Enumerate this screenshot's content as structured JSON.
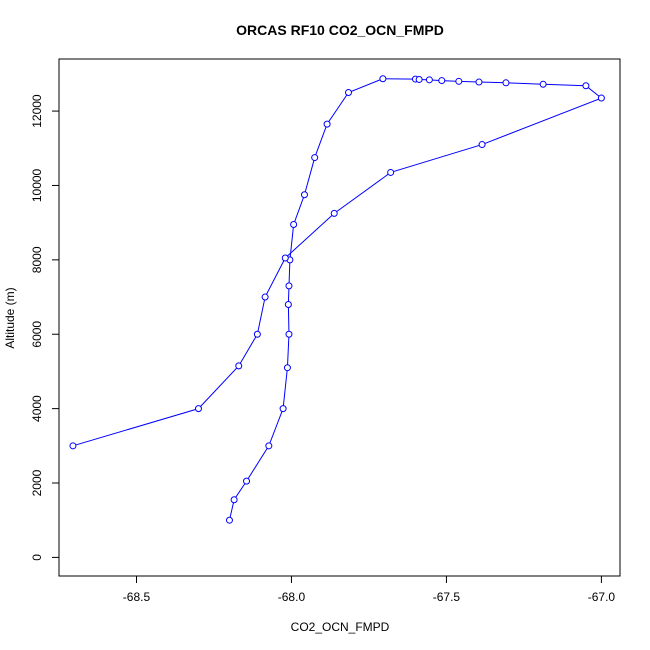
{
  "chart_data": {
    "type": "line",
    "title": "ORCAS RF10 CO2_OCN_FMPD",
    "xlabel": "CO2_OCN_FMPD",
    "ylabel": "Altitude (m)",
    "xlim": [
      -68.75,
      -66.94
    ],
    "ylim": [
      -500,
      13400
    ],
    "x_ticks": [
      -68.5,
      -68.0,
      -67.5,
      -67.0
    ],
    "x_tick_labels": [
      "-68.5",
      "-68.0",
      "-67.5",
      "-67.0"
    ],
    "y_ticks": [
      0,
      2000,
      4000,
      6000,
      8000,
      10000,
      12000
    ],
    "y_tick_labels": [
      "0",
      "2000",
      "4000",
      "6000",
      "8000",
      "10000",
      "12000"
    ],
    "grid": false,
    "series": [
      {
        "color": "#0000ff",
        "x": [
          -68.2,
          -68.185,
          -68.145,
          -68.073,
          -68.027,
          -68.013,
          -68.008,
          -68.01,
          -68.008,
          -68.005,
          -67.993,
          -67.958,
          -67.925,
          -67.885,
          -67.816,
          -67.705,
          -67.6,
          -67.588,
          -67.555,
          -67.515,
          -67.46,
          -67.395,
          -67.308,
          -67.188,
          -67.05,
          -67.0,
          -67.385,
          -67.68,
          -67.862,
          -68.02,
          -68.085,
          -68.11,
          -68.17,
          -68.3,
          -68.705
        ],
        "y": [
          1000,
          1550,
          2050,
          3000,
          4000,
          5100,
          6000,
          6800,
          7300,
          8000,
          8950,
          9750,
          10750,
          11650,
          12500,
          12870,
          12860,
          12850,
          12840,
          12820,
          12800,
          12780,
          12760,
          12720,
          12680,
          12350,
          11100,
          10350,
          9250,
          8050,
          7000,
          6000,
          5150,
          4000,
          3000
        ]
      }
    ]
  }
}
